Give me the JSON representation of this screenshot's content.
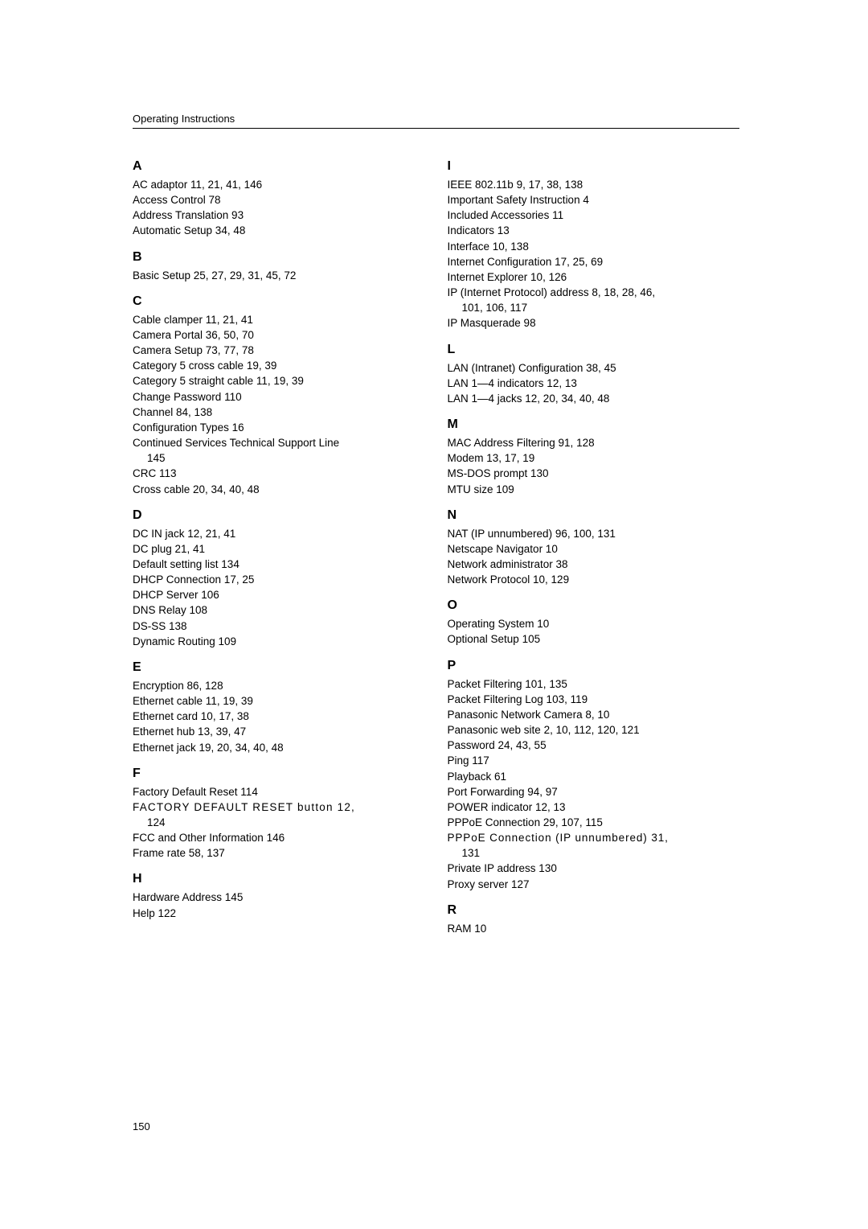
{
  "header_label": "Operating Instructions",
  "page_number": "150",
  "left": {
    "A": [
      "AC adaptor 11, 21, 41, 146",
      "Access Control 78",
      "Address Translation 93",
      "Automatic Setup 34, 48"
    ],
    "B": [
      "Basic Setup 25, 27, 29, 31, 45, 72"
    ],
    "C": [
      "Cable clamper 11, 21, 41",
      "Camera Portal 36, 50, 70",
      "Camera Setup 73, 77, 78",
      "Category 5 cross cable 19, 39",
      "Category 5 straight cable 11, 19, 39",
      "Change Password 110",
      "Channel 84, 138",
      "Configuration Types 16",
      "Continued Services Technical Support Line",
      "145",
      "CRC 113",
      "Cross cable 20, 34, 40, 48"
    ],
    "D": [
      "DC IN jack 12, 21, 41",
      "DC plug 21, 41",
      "Default setting list 134",
      "DHCP Connection 17, 25",
      "DHCP Server 106",
      "DNS Relay 108",
      "DS-SS 138",
      "Dynamic Routing 109"
    ],
    "E": [
      "Encryption 86, 128",
      "Ethernet cable 11, 19, 39",
      "Ethernet card 10, 17, 38",
      "Ethernet hub 13, 39, 47",
      "Ethernet jack 19, 20, 34, 40, 48"
    ],
    "F": [
      "Factory Default Reset 114",
      "FACTORY DEFAULT RESET button 12,",
      "124",
      "FCC and Other Information 146",
      "Frame rate 58, 137"
    ],
    "H": [
      "Hardware Address 145",
      "Help 122"
    ]
  },
  "right": {
    "I": [
      "IEEE 802.11b 9, 17, 38, 138",
      "Important Safety Instruction 4",
      "Included Accessories 11",
      "Indicators 13",
      "Interface 10, 138",
      "Internet Configuration 17, 25, 69",
      "Internet Explorer 10, 126",
      "IP (Internet Protocol) address 8, 18, 28, 46,",
      "101, 106, 117",
      "IP Masquerade 98"
    ],
    "L": [
      "LAN (Intranet) Configuration 38, 45",
      "LAN 1—4 indicators 12, 13",
      "LAN 1—4 jacks 12, 20, 34, 40, 48"
    ],
    "M": [
      "MAC Address Filtering 91, 128",
      "Modem 13, 17, 19",
      "MS-DOS prompt 130",
      "MTU size 109"
    ],
    "N": [
      "NAT (IP unnumbered) 96, 100, 131",
      "Netscape Navigator 10",
      "Network administrator 38",
      "Network Protocol 10, 129"
    ],
    "O": [
      "Operating System 10",
      "Optional Setup 105"
    ],
    "P": [
      "Packet Filtering 101, 135",
      "Packet Filtering Log 103, 119",
      "Panasonic Network Camera 8, 10",
      "Panasonic web site 2, 10, 112, 120, 121",
      "Password 24, 43, 55",
      "Ping 117",
      "Playback 61",
      "Port Forwarding 94, 97",
      "POWER indicator 12, 13",
      "PPPoE Connection 29, 107, 115",
      "PPPoE Connection (IP unnumbered) 31,",
      "131",
      "Private IP address 130",
      "Proxy server 127"
    ],
    "R": [
      "RAM 10"
    ]
  }
}
